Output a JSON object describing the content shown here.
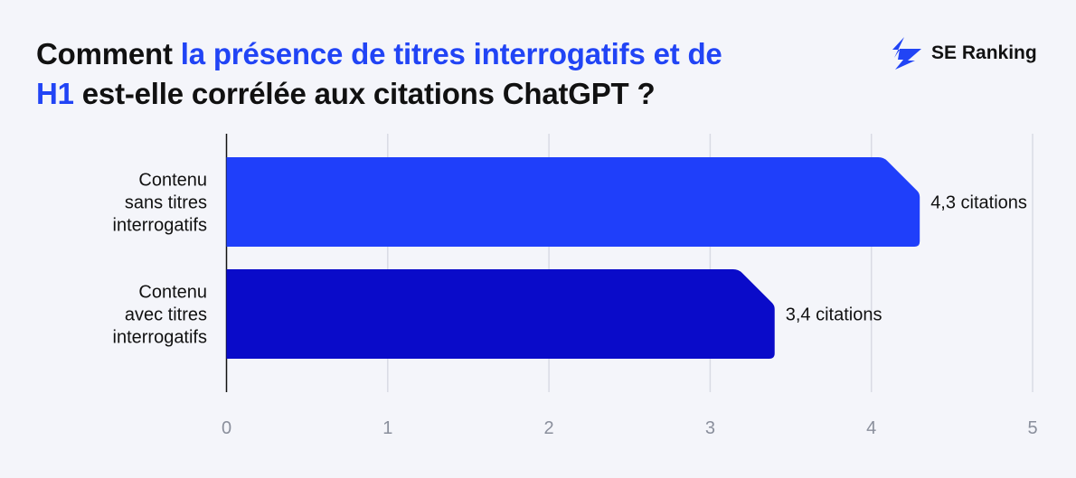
{
  "title": {
    "part1": "Comment ",
    "part2": "la présence de titres interrogatifs et de",
    "part3": "H1",
    "part4": " est-elle corrélée aux citations ChatGPT ?"
  },
  "brand": {
    "name": "SE Ranking",
    "icon": "se-ranking-bolt-icon",
    "color": "#2144f5"
  },
  "colors": {
    "title_highlight": "#2144f5",
    "background": "#f4f5fa"
  },
  "chart_data": {
    "type": "bar",
    "orientation": "horizontal",
    "categories": [
      [
        "Contenu",
        "sans titres",
        "interrogatifs"
      ],
      [
        "Contenu",
        "avec titres",
        "interrogatifs"
      ]
    ],
    "values": [
      4.3,
      3.4
    ],
    "value_labels": [
      "4,3 citations",
      "3,4 citations"
    ],
    "bar_colors": [
      "#1f3ffa",
      "#0a0bc9"
    ],
    "xlim": [
      0,
      5
    ],
    "xticks": [
      "0",
      "1",
      "2",
      "3",
      "4",
      "5"
    ],
    "grid": true,
    "xlabel": "",
    "ylabel": ""
  }
}
